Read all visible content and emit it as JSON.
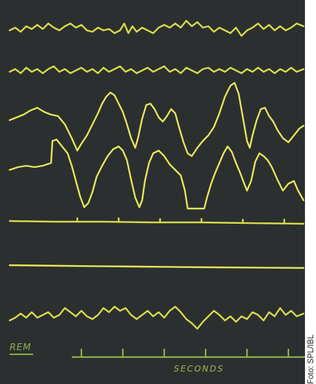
{
  "image": {
    "labels": {
      "rem": "REM",
      "seconds": "SECONDS"
    },
    "credit": "Foto: SPL/IBL",
    "colors": {
      "background": "#2c2f30",
      "trace": "#d8dc4a",
      "scale": "#8fb24a"
    }
  }
}
